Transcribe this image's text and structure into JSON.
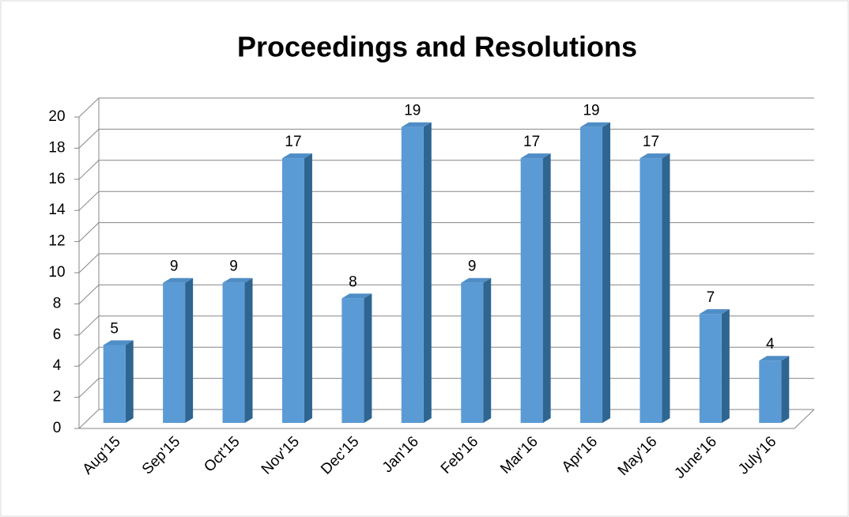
{
  "chart_data": {
    "type": "bar",
    "title": "Proceedings and Resolutions",
    "categories": [
      "Aug'15",
      "Sep'15",
      "Oct'15",
      "Nov'15",
      "Dec'15",
      "Jan'16",
      "Feb'16",
      "Mar'16",
      "Apr'16",
      "May'16",
      "June'16",
      "July'16"
    ],
    "values": [
      5,
      9,
      9,
      17,
      8,
      19,
      9,
      17,
      19,
      17,
      7,
      4
    ],
    "color": "#5b9bd5",
    "ylim": [
      0,
      20
    ],
    "yticks": [
      0,
      2,
      4,
      6,
      8,
      10,
      12,
      14,
      16,
      18,
      20
    ],
    "grid": true
  }
}
